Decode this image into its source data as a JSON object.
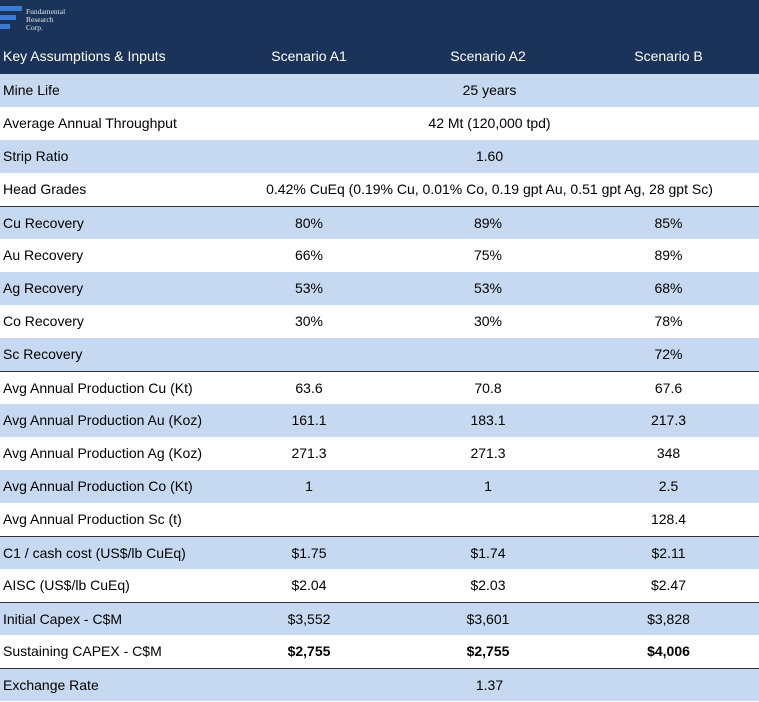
{
  "header": {
    "logo": [
      "Fundamental",
      "Research",
      "Corp."
    ],
    "columns": [
      "Key Assumptions & Inputs",
      "Scenario A1",
      "Scenario A2",
      "Scenario B"
    ]
  },
  "table": {
    "rows": [
      {
        "label": "Mine Life",
        "merged": "25 years"
      },
      {
        "label": "Average Annual Throughput",
        "merged": "42 Mt (120,000 tpd)"
      },
      {
        "label": "Strip Ratio",
        "merged": "1.60"
      },
      {
        "label": "Head Grades",
        "merged": "0.42% CuEq (0.19% Cu, 0.01% Co, 0.19 gpt Au,  0.51 gpt Ag, 28 gpt Sc)"
      },
      {
        "label": "Cu Recovery",
        "values": [
          "80%",
          "89%",
          "85%"
        ]
      },
      {
        "label": "Au Recovery",
        "values": [
          "66%",
          "75%",
          "89%"
        ]
      },
      {
        "label": "Ag Recovery",
        "values": [
          "53%",
          "53%",
          "68%"
        ]
      },
      {
        "label": "Co Recovery",
        "values": [
          "30%",
          "30%",
          "78%"
        ]
      },
      {
        "label": "Sc Recovery",
        "values": [
          null,
          null,
          "72%"
        ]
      },
      {
        "label": "Avg Annual Production Cu (Kt)",
        "values": [
          "63.6",
          "70.8",
          "67.6"
        ]
      },
      {
        "label": "Avg Annual Production Au (Koz)",
        "values": [
          "161.1",
          "183.1",
          "217.3"
        ]
      },
      {
        "label": "Avg Annual Production Ag (Koz)",
        "values": [
          "271.3",
          "271.3",
          "348"
        ]
      },
      {
        "label": "Avg Annual Production Co (Kt)",
        "values": [
          "1",
          "1",
          "2.5"
        ]
      },
      {
        "label": "Avg Annual Production Sc (t)",
        "values": [
          null,
          null,
          "128.4"
        ]
      },
      {
        "label": "C1 / cash cost (US$/lb CuEq)",
        "values": [
          "$1.75",
          "$1.74",
          "$2.11"
        ]
      },
      {
        "label": "AISC (US$/lb CuEq)",
        "values": [
          "$2.04",
          "$2.03",
          "$2.47"
        ]
      },
      {
        "label": "Initial Capex - C$M",
        "values": [
          "$3,552",
          "$3,601",
          "$3,828"
        ]
      },
      {
        "label": "Sustaining CAPEX - C$M",
        "values": [
          "$2,755",
          "$2,755",
          "$4,006"
        ]
      },
      {
        "label": "Exchange Rate",
        "merged": "1.37"
      }
    ]
  }
}
